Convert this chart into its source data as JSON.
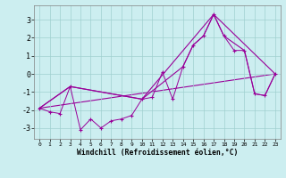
{
  "xlabel": "Windchill (Refroidissement éolien,°C)",
  "bg_color": "#cceef0",
  "grid_color": "#a0d0d0",
  "line_color": "#990099",
  "x_ticks": [
    0,
    1,
    2,
    3,
    4,
    5,
    6,
    7,
    8,
    9,
    10,
    11,
    12,
    13,
    14,
    15,
    16,
    17,
    18,
    19,
    20,
    21,
    22,
    23
  ],
  "y_ticks": [
    -3,
    -2,
    -1,
    0,
    1,
    2,
    3
  ],
  "ylim": [
    -3.6,
    3.8
  ],
  "xlim": [
    -0.5,
    23.5
  ],
  "line1_x": [
    0,
    1,
    2,
    3,
    4,
    5,
    6,
    7,
    8,
    9,
    10,
    11,
    12,
    13,
    14,
    15,
    16,
    17,
    18,
    19,
    20,
    21,
    22,
    23
  ],
  "line1_y": [
    -1.9,
    -2.1,
    -2.2,
    -0.7,
    -3.1,
    -2.5,
    -3.0,
    -2.6,
    -2.5,
    -2.3,
    -1.4,
    -1.3,
    0.1,
    -1.4,
    0.4,
    1.6,
    2.1,
    3.3,
    2.1,
    1.3,
    1.3,
    -1.1,
    -1.2,
    0.0
  ],
  "line2_x": [
    0,
    3,
    10,
    14,
    15,
    16,
    17,
    18,
    20,
    21,
    22,
    23
  ],
  "line2_y": [
    -1.9,
    -0.7,
    -1.4,
    0.4,
    1.6,
    2.1,
    3.3,
    2.1,
    1.3,
    -1.1,
    -1.2,
    0.0
  ],
  "line3_x": [
    0,
    3,
    10,
    17,
    23
  ],
  "line3_y": [
    -1.9,
    -0.7,
    -1.4,
    3.3,
    0.0
  ],
  "line4_x": [
    0,
    23
  ],
  "line4_y": [
    -1.9,
    0.0
  ]
}
